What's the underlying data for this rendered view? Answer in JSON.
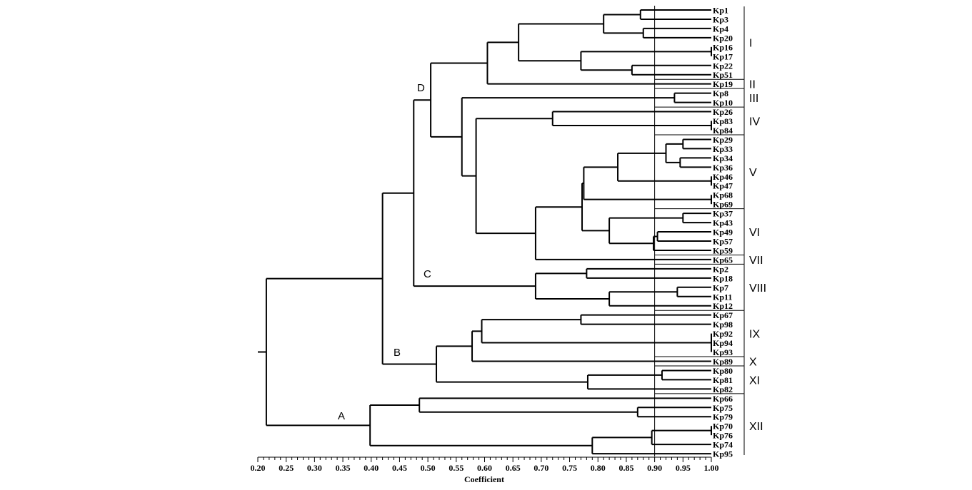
{
  "axis": {
    "title": "Coefficient",
    "ticks": [
      "0.20",
      "0.25",
      "0.30",
      "0.35",
      "0.40",
      "0.45",
      "0.50",
      "0.55",
      "0.60",
      "0.65",
      "0.70",
      "0.75",
      "0.80",
      "0.85",
      "0.90",
      "0.95",
      "1.00"
    ],
    "range": [
      0.2,
      1.0
    ],
    "cutoff": 0.9
  },
  "leaves": [
    "Kp1",
    "Kp3",
    "Kp4",
    "Kp20",
    "Kp16",
    "Kp17",
    "Kp22",
    "Kp51",
    "Kp19",
    "Kp8",
    "Kp10",
    "Kp26",
    "Kp83",
    "Kp84",
    "Kp29",
    "Kp33",
    "Kp34",
    "Kp36",
    "Kp46",
    "Kp47",
    "Kp68",
    "Kp69",
    "Kp37",
    "Kp43",
    "Kp49",
    "Kp57",
    "Kp59",
    "Kp65",
    "Kp2",
    "Kp18",
    "Kp7",
    "Kp11",
    "Kp12",
    "Kp67",
    "Kp98",
    "Kp92",
    "Kp94",
    "Kp93",
    "Kp89",
    "Kp80",
    "Kp81",
    "Kp82",
    "Kp66",
    "Kp75",
    "Kp79",
    "Kp70",
    "Kp76",
    "Kp74",
    "Kp95"
  ],
  "groups": [
    {
      "label": "I",
      "first": 0,
      "last": 7
    },
    {
      "label": "II",
      "first": 8,
      "last": 8
    },
    {
      "label": "III",
      "first": 9,
      "last": 10
    },
    {
      "label": "IV",
      "first": 11,
      "last": 13
    },
    {
      "label": "V",
      "first": 14,
      "last": 21
    },
    {
      "label": "VI",
      "first": 22,
      "last": 26
    },
    {
      "label": "VII",
      "first": 27,
      "last": 27
    },
    {
      "label": "VIII",
      "first": 28,
      "last": 32
    },
    {
      "label": "IX",
      "first": 33,
      "last": 37
    },
    {
      "label": "X",
      "first": 38,
      "last": 38
    },
    {
      "label": "XI",
      "first": 39,
      "last": 41
    },
    {
      "label": "XII",
      "first": 42,
      "last": 48
    }
  ],
  "clusters": {
    "A": "A",
    "B": "B",
    "C": "C",
    "D": "D"
  }
}
